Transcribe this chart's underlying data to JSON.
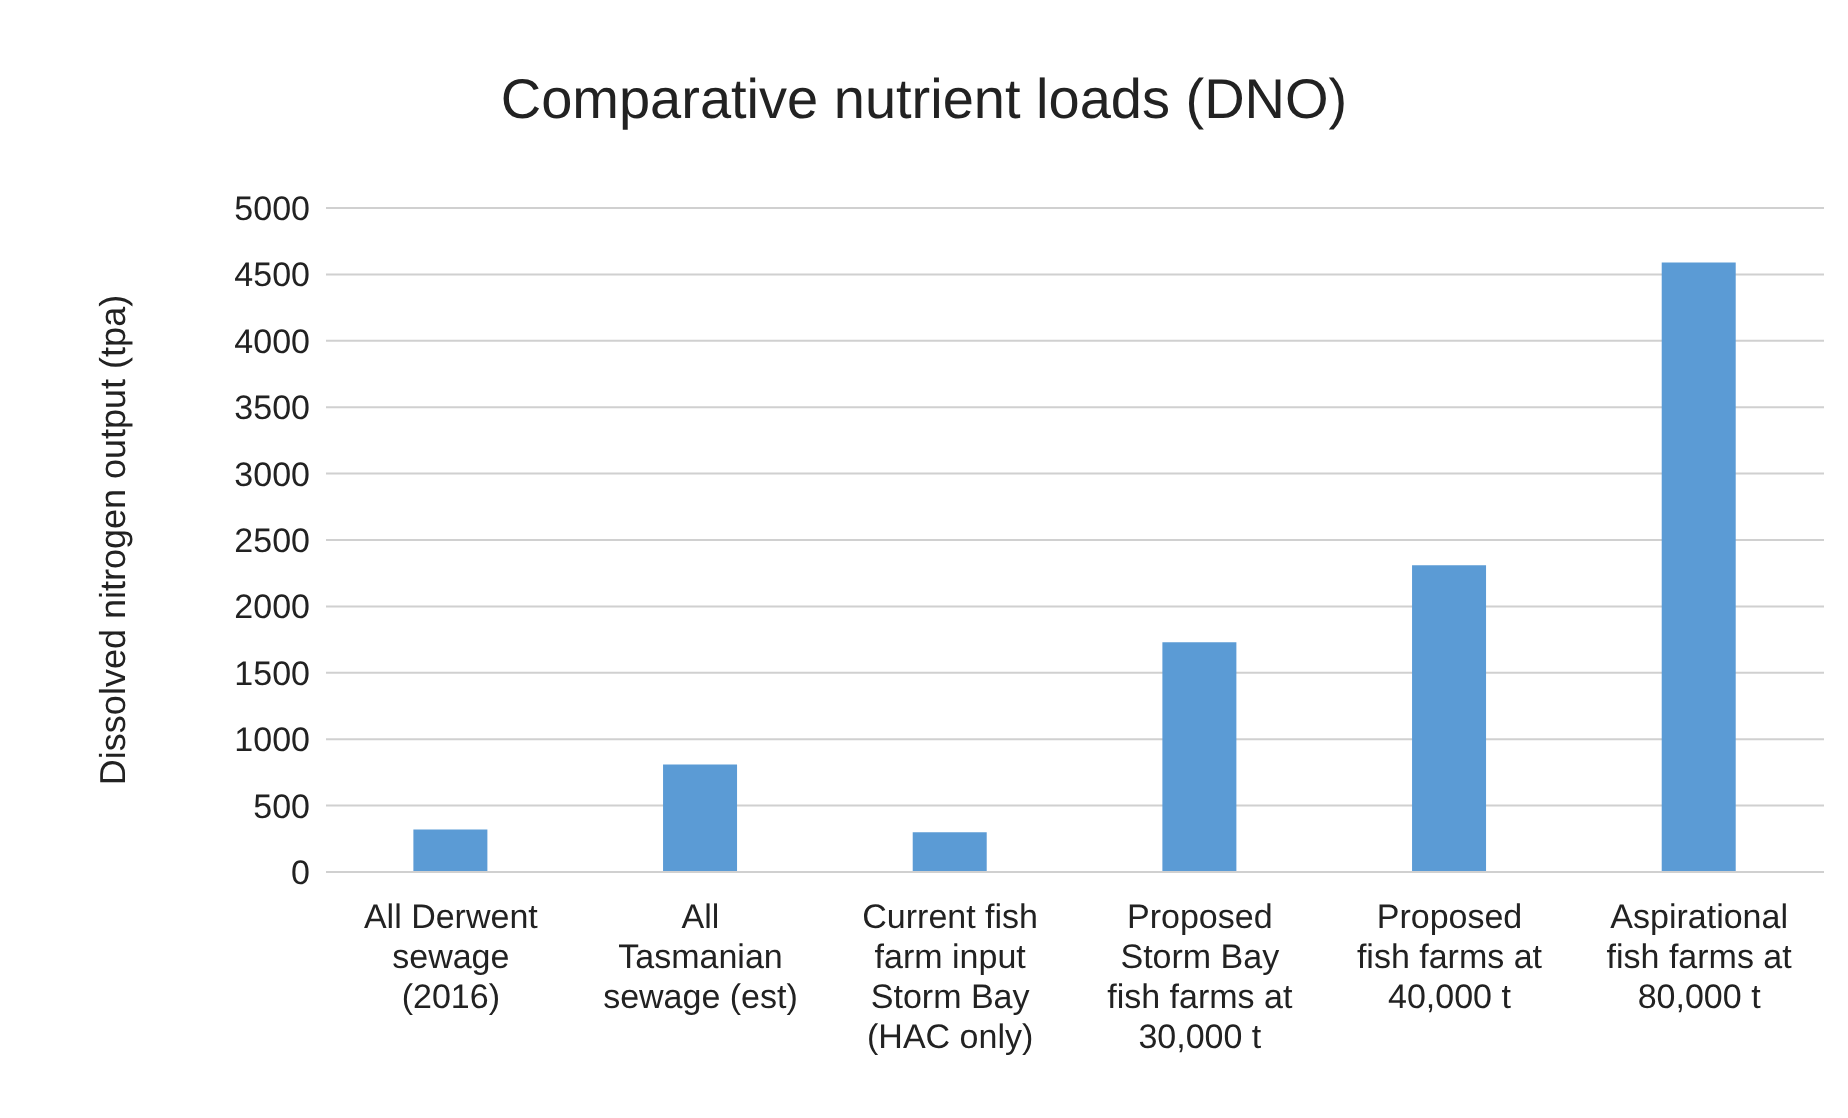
{
  "chart_data": {
    "type": "bar",
    "title": "Comparative nutrient loads (DNO)",
    "ylabel": "Dissolved nitrogen output (tpa)",
    "categories": [
      "All Derwent\nsewage\n(2016)",
      "All\nTasmanian\nsewage (est)",
      "Current fish\nfarm input\nStorm Bay\n(HAC only)",
      "Proposed\nStorm Bay\nfish farms at\n30,000 t",
      "Proposed\nfish farms at\n40,000 t",
      "Aspirational\nfish farms at\n80,000 t"
    ],
    "values": [
      320,
      810,
      300,
      1730,
      2310,
      4590
    ],
    "color": "#5b9bd5",
    "ylim": [
      0,
      5000
    ],
    "yticks": [
      0,
      500,
      1000,
      1500,
      2000,
      2500,
      3000,
      3500,
      4000,
      4500,
      5000
    ],
    "grid": "y"
  }
}
